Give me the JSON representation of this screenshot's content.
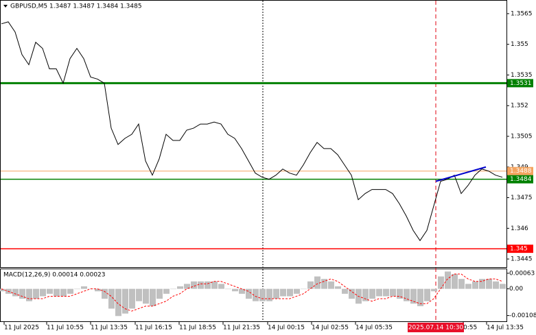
{
  "chart_data": {
    "type": "line",
    "title": "GBPUSD,M5  1.3487 1.3487 1.3484 1.3485",
    "series": [
      {
        "name": "GBPUSD",
        "color": "#000000",
        "values": [
          1.356,
          1.3561,
          1.3556,
          1.3545,
          1.354,
          1.3551,
          1.3548,
          1.3538,
          1.3538,
          1.3531,
          1.3543,
          1.3548,
          1.3543,
          1.3534,
          1.3533,
          1.3531,
          1.3509,
          1.3501,
          1.3504,
          1.3506,
          1.3511,
          1.3493,
          1.3486,
          1.3494,
          1.3506,
          1.3503,
          1.3503,
          1.3508,
          1.3509,
          1.3511,
          1.3511,
          1.3512,
          1.3511,
          1.3506,
          1.3504,
          1.3499,
          1.3493,
          1.3487,
          1.3485,
          1.3484,
          1.3486,
          1.3489,
          1.3487,
          1.3486,
          1.3491,
          1.3497,
          1.3502,
          1.3499,
          1.3499,
          1.3496,
          1.3491,
          1.3486,
          1.3474,
          1.3477,
          1.3479,
          1.3479,
          1.3479,
          1.3477,
          1.3472,
          1.3466,
          1.3459,
          1.3454,
          1.3459,
          1.3471,
          1.3483,
          1.3484,
          1.3486,
          1.3477,
          1.3481,
          1.3486,
          1.3489,
          1.3488,
          1.3486,
          1.3485
        ]
      }
    ],
    "ylim": [
      1.3441,
      1.3571
    ],
    "yticks": [
      1.3445,
      1.346,
      1.3475,
      1.349,
      1.3505,
      1.352,
      1.3535,
      1.355,
      1.3565
    ],
    "levels": [
      {
        "value": 1.3531,
        "color": "#008000"
      },
      {
        "value": 1.3488,
        "color": "#f4a460"
      },
      {
        "value": 1.3484,
        "color": "#008000"
      },
      {
        "value": 1.345,
        "color": "#ff0000"
      }
    ],
    "trendline": {
      "x": [
        63.3,
        70.6
      ],
      "values": [
        1.3483,
        1.349
      ],
      "color": "#0000cc"
    },
    "xticks": [
      {
        "value": 0.4,
        "label": "11 Jul 2025"
      },
      {
        "value": 6.6,
        "label": "11 Jul 10:55"
      },
      {
        "value": 13.0,
        "label": "11 Jul 13:35"
      },
      {
        "value": 19.5,
        "label": "11 Jul 16:15"
      },
      {
        "value": 25.9,
        "label": "11 Jul 18:55"
      },
      {
        "value": 32.3,
        "label": "11 Jul 21:35"
      },
      {
        "value": 38.8,
        "label": "14 Jul 00:15"
      },
      {
        "value": 45.2,
        "label": "14 Jul 02:55"
      },
      {
        "value": 51.6,
        "label": "14 Jul 05:35"
      },
      {
        "value": 67.3,
        "label": "0:55"
      },
      {
        "value": 70.7,
        "label": "14 Jul 13:35"
      }
    ],
    "separators": [
      38.1
    ],
    "crosshair": {
      "x": 63.3,
      "label": "2025.07.14 10:30"
    },
    "macd": {
      "title": "MACD(12,26,9) 0.00014 0.00023",
      "ylim": [
        -0.00134,
        0.00082
      ],
      "yticks": [
        -0.00108,
        {
          "value": 0,
          "label": "0.00"
        },
        0.00063
      ],
      "histogram": {
        "color": "#c0c0c0",
        "values": [
          -0.0001,
          -0.0002,
          -0.0003,
          -0.0004,
          -0.0005,
          -0.0004,
          -0.0003,
          -0.0002,
          -0.0003,
          -0.0003,
          -0.0002,
          0,
          0.0001,
          0,
          -0.0001,
          -0.0004,
          -0.0008,
          -0.0011,
          -0.001,
          -0.0008,
          -0.0005,
          -0.0006,
          -0.0007,
          -0.0004,
          -0.0002,
          0,
          0.0001,
          0.0002,
          0.0003,
          0.0003,
          0.0003,
          0.0003,
          0.0002,
          0,
          -0.0001,
          -0.0002,
          -0.0004,
          -0.0005,
          -0.0005,
          -0.0005,
          -0.0004,
          -0.0003,
          -0.0003,
          -0.0002,
          0,
          0.0003,
          0.0005,
          0.0004,
          0.0003,
          0.0001,
          -0.0002,
          -0.0004,
          -0.0006,
          -0.0005,
          -0.0004,
          -0.0003,
          -0.0003,
          -0.0003,
          -0.0004,
          -0.0005,
          -0.0006,
          -0.0007,
          -0.0005,
          -0.0001,
          0.0005,
          0.0007,
          0.0006,
          0.0004,
          0.0002,
          0.0003,
          0.0004,
          0.0004,
          0.0003,
          0.0002
        ]
      },
      "signal": {
        "color": "#ff0000",
        "values": [
          0,
          -0.0001,
          -0.0002,
          -0.0003,
          -0.0004,
          -0.0004,
          -0.0004,
          -0.0003,
          -0.0003,
          -0.0003,
          -0.0003,
          -0.0002,
          -0.0001,
          0,
          0,
          -0.0001,
          -0.0003,
          -0.0006,
          -0.0008,
          -0.0009,
          -0.0008,
          -0.0007,
          -0.0007,
          -0.0006,
          -0.0005,
          -0.0003,
          -0.0002,
          0,
          0.0001,
          0.0002,
          0.0002,
          0.0003,
          0.0003,
          0.0002,
          0.0001,
          0,
          -0.0001,
          -0.0003,
          -0.0004,
          -0.0004,
          -0.0004,
          -0.0004,
          -0.0004,
          -0.0003,
          -0.0002,
          0,
          0.0002,
          0.0003,
          0.0004,
          0.0003,
          0.0001,
          -0.0001,
          -0.0003,
          -0.0004,
          -0.0005,
          -0.0004,
          -0.0004,
          -0.0003,
          -0.0003,
          -0.0004,
          -0.0005,
          -0.0006,
          -0.0006,
          -0.0004,
          0,
          0.0004,
          0.0006,
          0.0006,
          0.0004,
          0.0003,
          0.0003,
          0.0004,
          0.0004,
          0.0003
        ]
      }
    }
  }
}
